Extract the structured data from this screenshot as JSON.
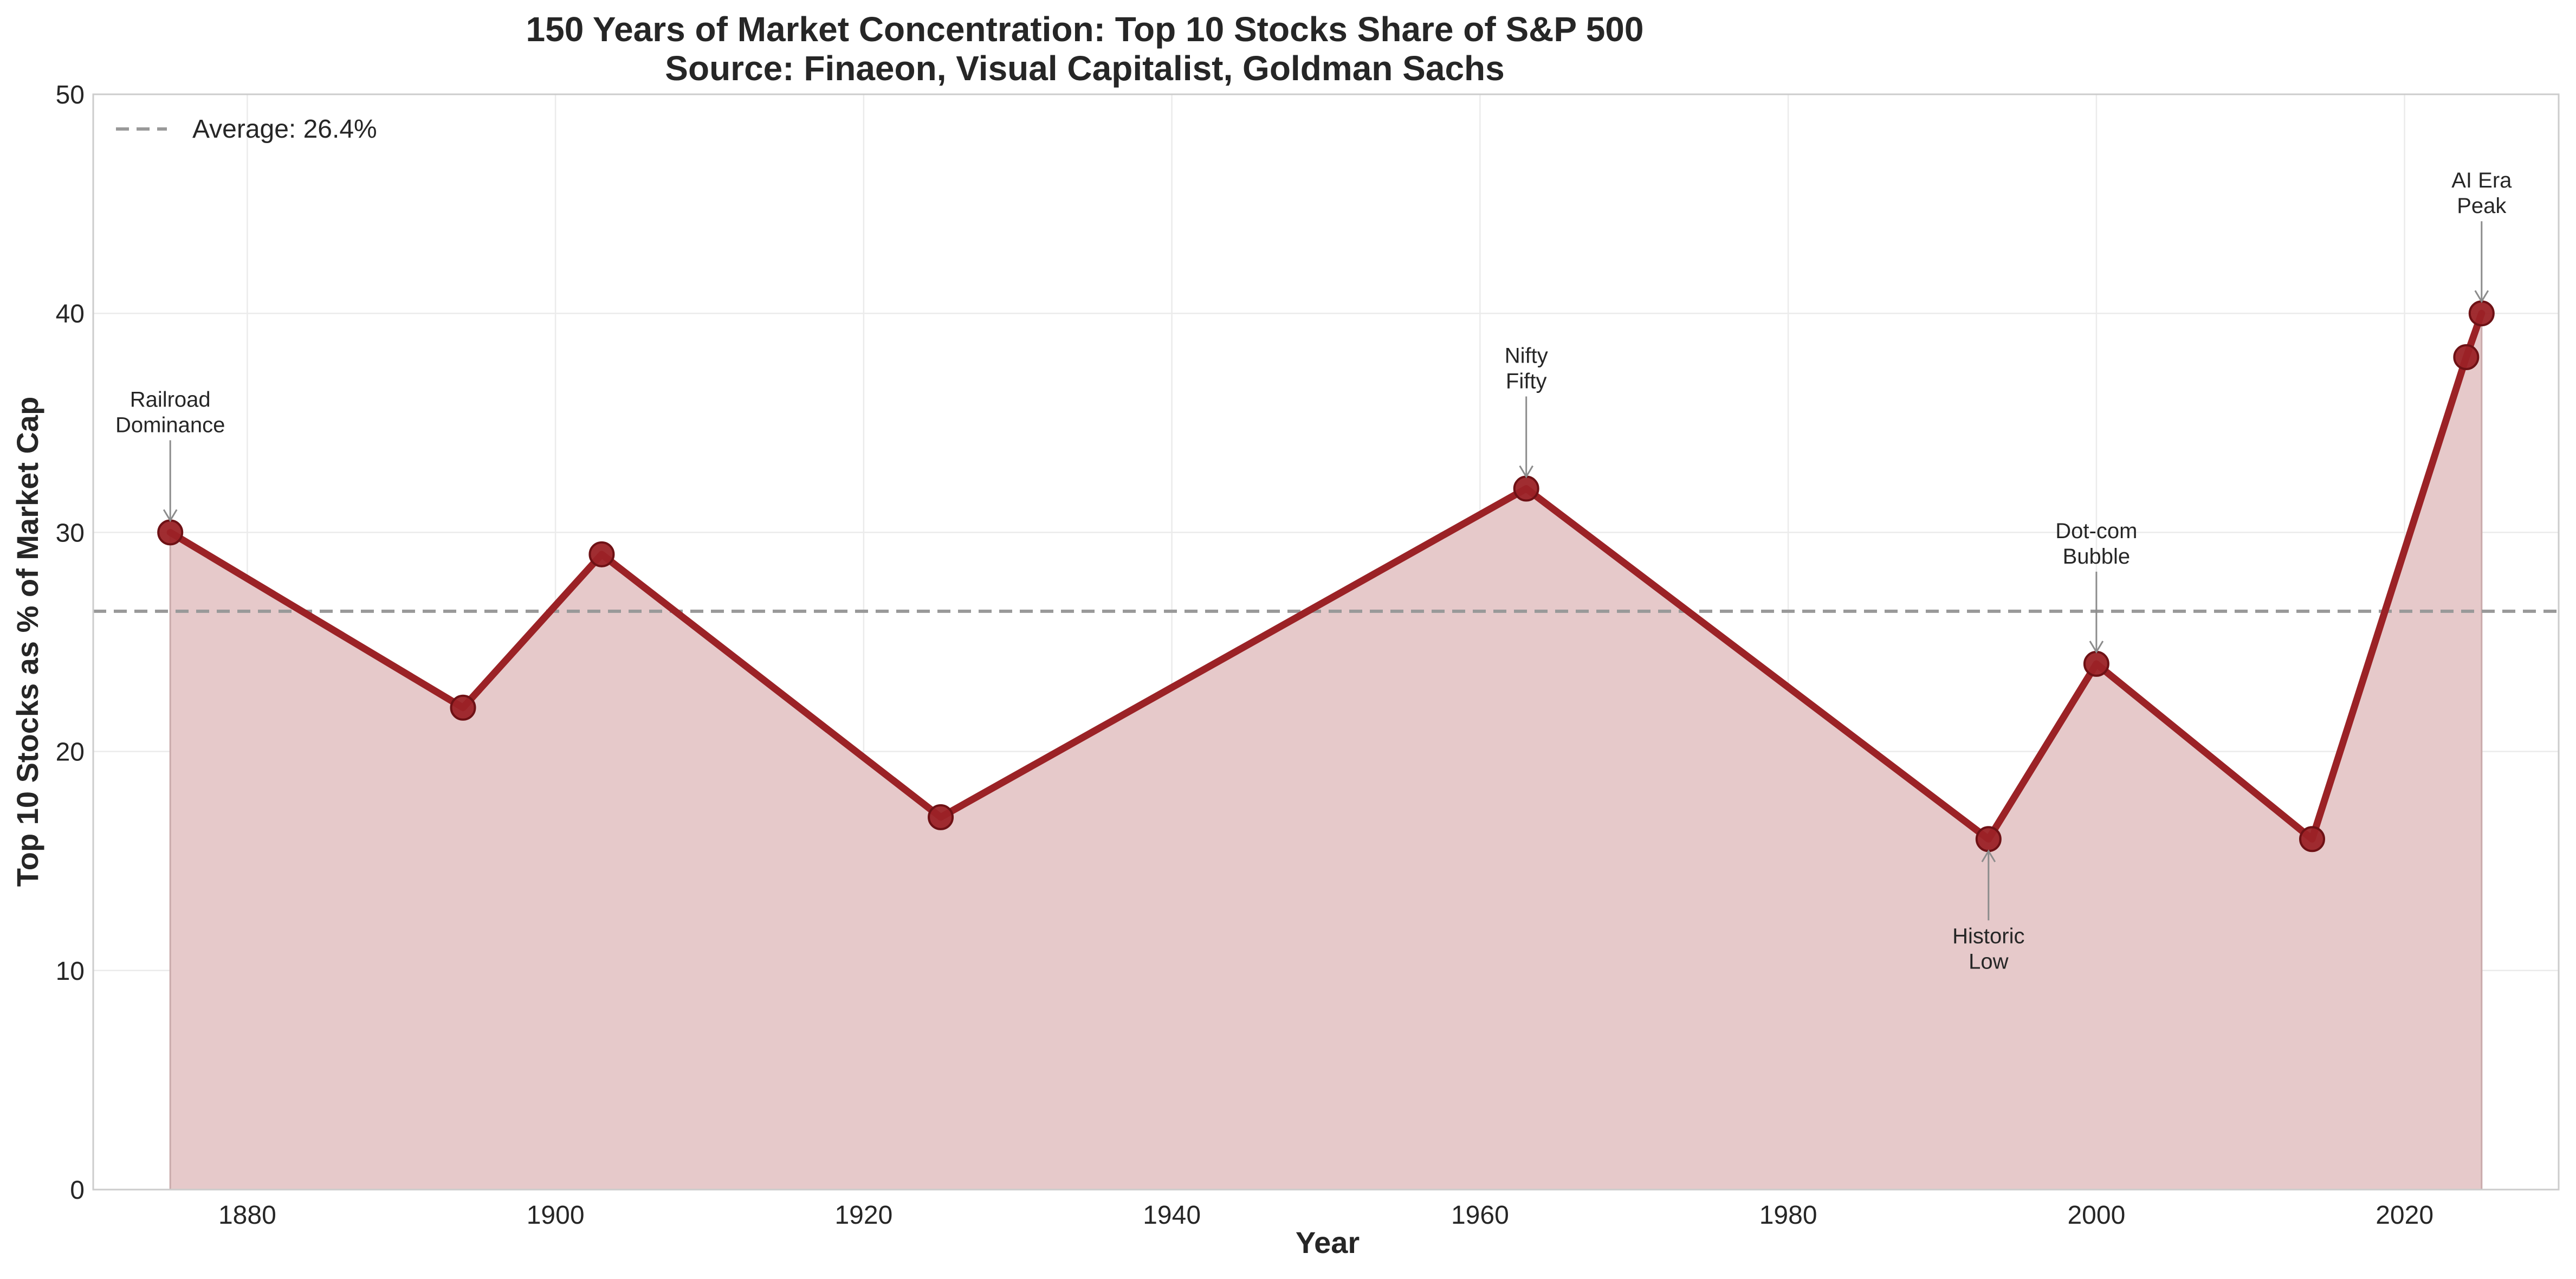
{
  "chart_data": {
    "type": "line",
    "title_line1": "150 Years of Market Concentration: Top 10 Stocks Share of S&P 500",
    "title_line2": "Source: Finaeon, Visual Capitalist, Goldman Sachs",
    "xlabel": "Year",
    "ylabel": "Top 10 Stocks as % of Market Cap",
    "xlim": [
      1870,
      2030
    ],
    "ylim": [
      0,
      50
    ],
    "x_ticks": [
      1880,
      1900,
      1920,
      1940,
      1960,
      1980,
      2000,
      2020
    ],
    "y_ticks": [
      0,
      10,
      20,
      30,
      40,
      50
    ],
    "grid": true,
    "series": [
      {
        "x": [
          1875,
          1894,
          1903,
          1925,
          1963,
          1993,
          2000,
          2014,
          2024,
          2025
        ],
        "y": [
          30,
          22,
          29,
          17,
          32,
          16,
          24,
          16,
          38,
          40
        ],
        "color": "#9b2226",
        "fill_color": "#e6c9ca"
      }
    ],
    "average": {
      "label": "Average: 26.4%",
      "value": 26.4,
      "color": "#999999"
    },
    "legend_position": "top-left",
    "annotations": [
      {
        "text": [
          "Railroad",
          "Dominance"
        ],
        "x": 1875,
        "y": 30,
        "placement": "above"
      },
      {
        "text": [
          "Nifty",
          "Fifty"
        ],
        "x": 1963,
        "y": 32,
        "placement": "above"
      },
      {
        "text": [
          "Historic",
          "Low"
        ],
        "x": 1993,
        "y": 16,
        "placement": "below"
      },
      {
        "text": [
          "Dot-com",
          "Bubble"
        ],
        "x": 2000,
        "y": 24,
        "placement": "above"
      },
      {
        "text": [
          "AI Era",
          "Peak"
        ],
        "x": 2025,
        "y": 40,
        "placement": "above"
      }
    ]
  }
}
